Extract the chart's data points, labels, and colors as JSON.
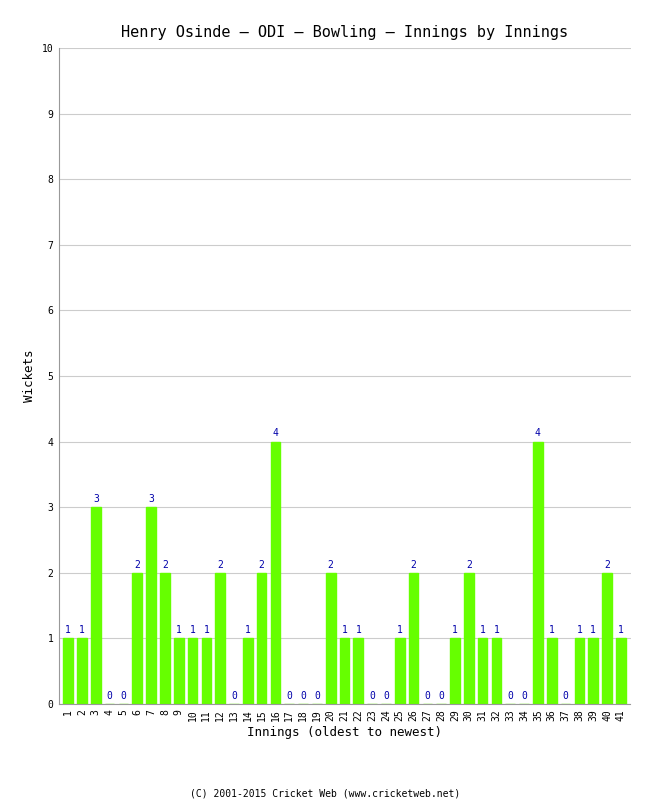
{
  "title": "Henry Osinde – ODI – Bowling – Innings by Innings",
  "xlabel": "Innings (oldest to newest)",
  "ylabel": "Wickets",
  "ylim": [
    0,
    10
  ],
  "yticks": [
    0,
    1,
    2,
    3,
    4,
    5,
    6,
    7,
    8,
    9,
    10
  ],
  "innings": [
    1,
    2,
    3,
    4,
    5,
    6,
    7,
    8,
    9,
    10,
    11,
    12,
    13,
    14,
    15,
    16,
    17,
    18,
    19,
    20,
    21,
    22,
    23,
    24,
    25,
    26,
    27,
    28,
    29,
    30,
    31,
    32,
    33,
    34,
    35,
    36,
    37,
    38,
    39,
    40,
    41
  ],
  "wickets": [
    1,
    1,
    3,
    0,
    0,
    2,
    3,
    2,
    1,
    1,
    1,
    2,
    0,
    1,
    2,
    4,
    0,
    0,
    0,
    2,
    1,
    1,
    0,
    0,
    1,
    2,
    0,
    0,
    1,
    2,
    1,
    1,
    0,
    0,
    4,
    1,
    0,
    1,
    1,
    2,
    1
  ],
  "bar_color": "#66ff00",
  "label_color": "#0000aa",
  "background_color": "#ffffff",
  "grid_color": "#cccccc",
  "title_fontsize": 11,
  "axis_label_fontsize": 9,
  "tick_fontsize": 7,
  "value_label_fontsize": 7,
  "copyright": "(C) 2001-2015 Cricket Web (www.cricketweb.net)"
}
